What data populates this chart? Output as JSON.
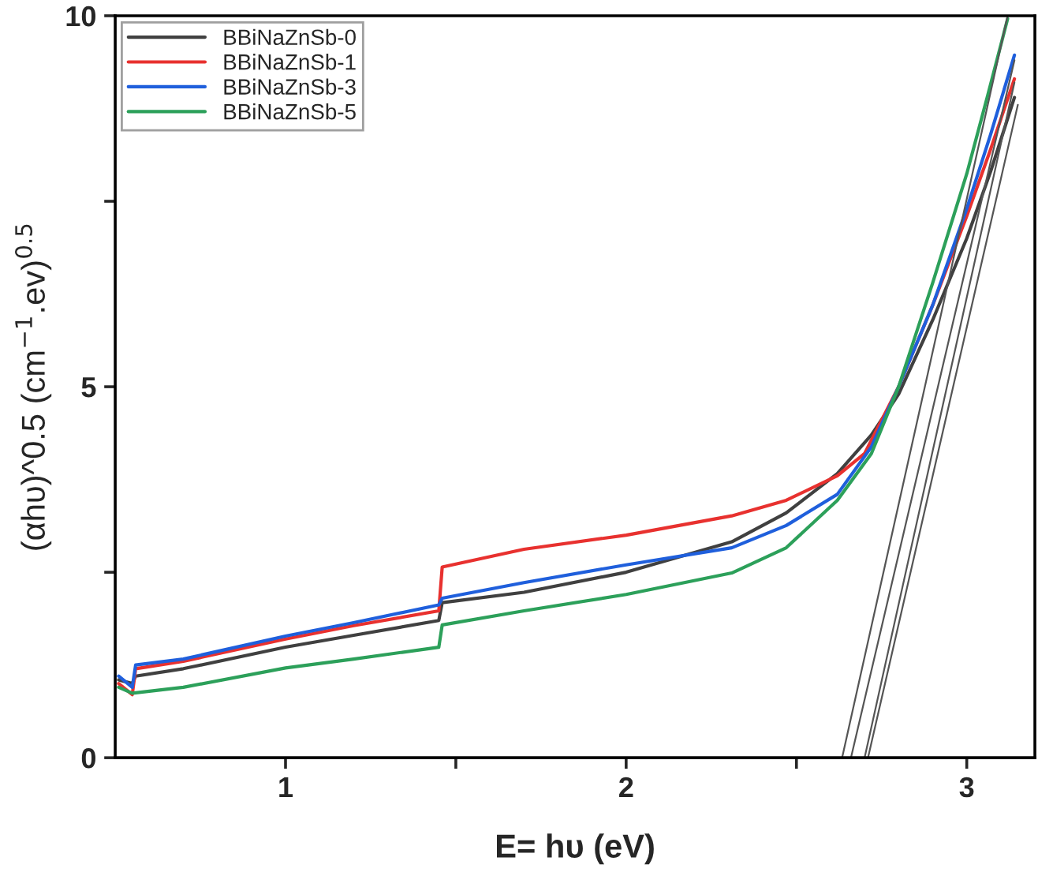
{
  "chart_data": {
    "type": "line",
    "xlabel": "E= hυ (eV)",
    "ylabel": "(αhυ)^0.5 (cm$^{−1}$.ev)$^{0.5}$",
    "xlim": [
      0.5,
      3.2
    ],
    "ylim": [
      0,
      10
    ],
    "xticks": [
      1,
      {
        "value": 1.5,
        "label": null
      },
      2,
      {
        "value": 2.5,
        "label": null
      },
      3
    ],
    "yticks": [
      0,
      {
        "value": 2.5,
        "label": null
      },
      5,
      {
        "value": 7.5,
        "label": null
      },
      10
    ],
    "grid": false,
    "legend": "top left",
    "line_style": "solid",
    "marker": "none",
    "series": [
      {
        "name": "BBiNaZnSb-0",
        "color": "#404040",
        "x": [
          0.51,
          0.55,
          0.56,
          0.7,
          1.0,
          1.2,
          1.45,
          1.46,
          1.7,
          2.0,
          2.31,
          2.47,
          2.62,
          2.72,
          2.8,
          2.9,
          3.0,
          3.07,
          3.14
        ],
        "values": [
          1.05,
          1.0,
          1.1,
          1.2,
          1.49,
          1.65,
          1.85,
          2.09,
          2.23,
          2.5,
          2.91,
          3.3,
          3.83,
          4.35,
          4.9,
          5.9,
          7.0,
          7.9,
          8.9
        ]
      },
      {
        "name": "BBiNaZnSb-1",
        "color": "#e8312f",
        "x": [
          0.51,
          0.55,
          0.56,
          0.7,
          1.0,
          1.2,
          1.45,
          1.46,
          1.7,
          2.0,
          2.31,
          2.47,
          2.62,
          2.7,
          2.8,
          2.9,
          3.0,
          3.07,
          3.14
        ],
        "values": [
          1.0,
          0.85,
          1.2,
          1.3,
          1.6,
          1.78,
          1.98,
          2.57,
          2.81,
          3.0,
          3.26,
          3.47,
          3.8,
          4.1,
          5.0,
          6.1,
          7.3,
          8.2,
          9.15
        ]
      },
      {
        "name": "BBiNaZnSb-3",
        "color": "#1f5fdc",
        "x": [
          0.51,
          0.55,
          0.56,
          0.7,
          1.0,
          1.2,
          1.45,
          1.46,
          1.7,
          2.0,
          2.31,
          2.47,
          2.62,
          2.72,
          2.8,
          2.9,
          3.0,
          3.07,
          3.14
        ],
        "values": [
          1.1,
          0.95,
          1.25,
          1.33,
          1.64,
          1.82,
          2.06,
          2.15,
          2.36,
          2.6,
          2.83,
          3.13,
          3.55,
          4.19,
          5.0,
          6.1,
          7.4,
          8.4,
          9.47
        ]
      },
      {
        "name": "BBiNaZnSb-5",
        "color": "#2ca05a",
        "x": [
          0.51,
          0.55,
          0.7,
          1.0,
          1.2,
          1.45,
          1.46,
          1.7,
          2.0,
          2.31,
          2.47,
          2.62,
          2.72,
          2.8,
          2.9,
          3.0,
          3.06,
          3.12
        ],
        "values": [
          0.95,
          0.87,
          0.95,
          1.21,
          1.33,
          1.49,
          1.79,
          1.98,
          2.2,
          2.49,
          2.83,
          3.47,
          4.1,
          5.0,
          6.4,
          7.87,
          8.9,
          9.96
        ]
      },
      {
        "color": "#555555",
        "x": [
          2.634,
          3.12
        ],
        "values": [
          0,
          10.0
        ]
      },
      {
        "color": "#555555",
        "x": [
          2.66,
          3.14
        ],
        "values": [
          0,
          9.4
        ]
      },
      {
        "color": "#555555",
        "x": [
          2.7,
          3.14
        ],
        "values": [
          0,
          9.1
        ]
      },
      {
        "color": "#555555",
        "x": [
          2.71,
          3.15
        ],
        "values": [
          0,
          8.8
        ]
      }
    ]
  }
}
